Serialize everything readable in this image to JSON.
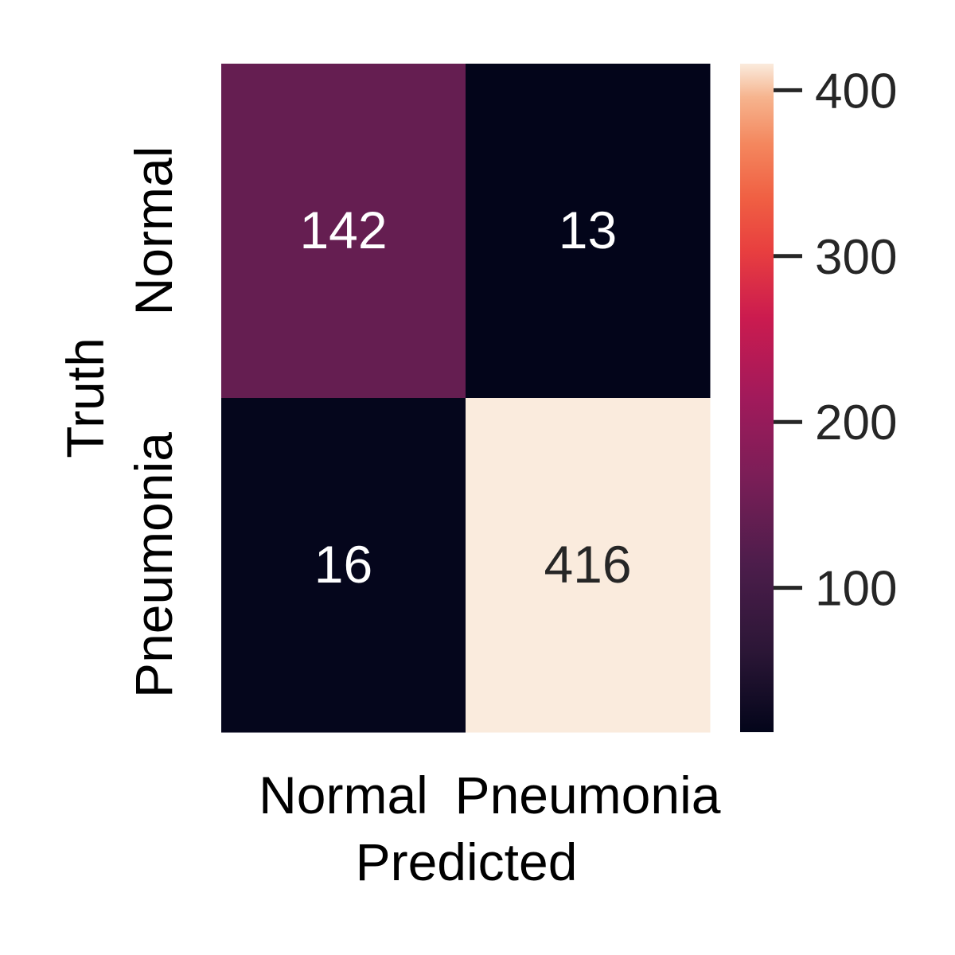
{
  "chart_data": {
    "type": "heatmap",
    "title": "",
    "xlabel": "Predicted",
    "ylabel": "Truth",
    "x_categories": [
      "Normal",
      "Pneumonia"
    ],
    "y_categories": [
      "Normal",
      "Pneumonia"
    ],
    "matrix": [
      [
        142,
        13
      ],
      [
        16,
        416
      ]
    ],
    "colorbar": {
      "colormap": "rocket",
      "range": [
        13,
        416
      ],
      "ticks": [
        100,
        200,
        300,
        400
      ]
    },
    "cell_text_colors": {
      "dark": "#ffffff",
      "light": "#262626"
    }
  }
}
